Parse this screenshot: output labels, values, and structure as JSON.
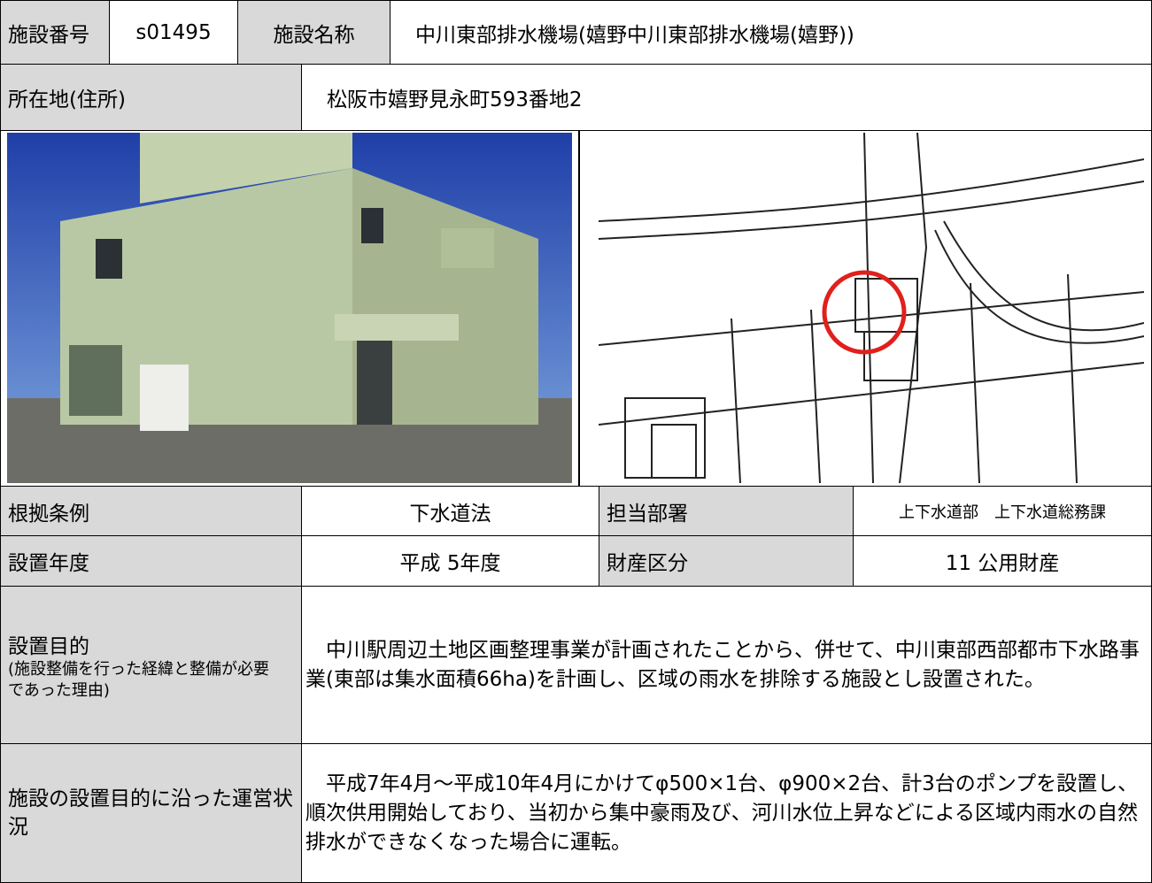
{
  "header": {
    "id_label": "施設番号",
    "id": "s01495",
    "name_label": "施設名称",
    "name": "中川東部排水機場(嬉野中川東部排水機場(嬉野))"
  },
  "address": {
    "label": "所在地(住所)",
    "value": "松阪市嬉野見永町593番地2"
  },
  "info": [
    {
      "label": "根拠条例",
      "value": "下水道法",
      "label2": "担当部署",
      "value2": "上下水道部　上下水道総務課"
    },
    {
      "label": "設置年度",
      "value": "平成 5年度",
      "label2": "財産区分",
      "value2": "11 公用財産"
    }
  ],
  "purpose": {
    "label": "設置目的",
    "note": "(施設整備を行った経緯と整備が必要であった理由)",
    "text": "中川駅周辺土地区画整理事業が計画されたことから、併せて、中川東部西部都市下水路事業(東部は集水面積66ha)を計画し、区域の雨水を排除する施設とし設置された。"
  },
  "operation": {
    "label": "施設の設置目的に沿った運営状況",
    "text": "平成7年4月～平成10年4月にかけてφ500×1台、φ900×2台、計3台のポンプを設置し、順次供用開始しており、当初から集中豪雨及び、河川水位上昇などによる区域内雨水の自然排水ができなくなった場合に運転。"
  }
}
